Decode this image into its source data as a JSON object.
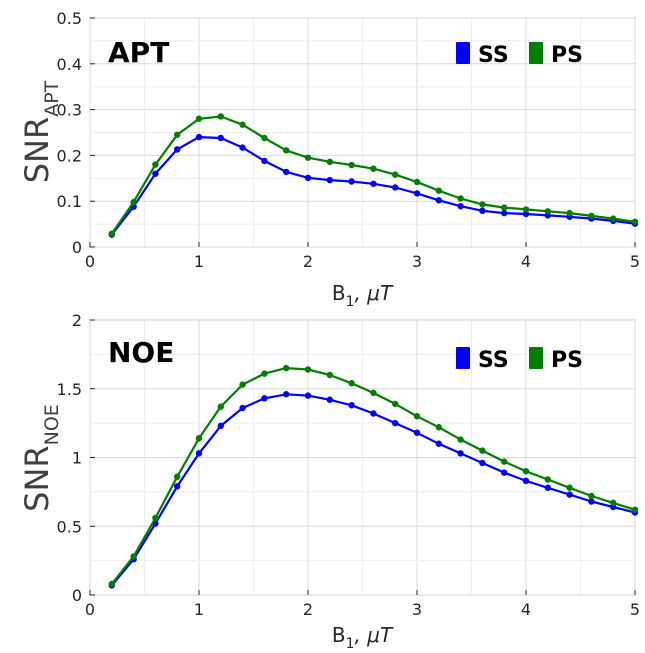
{
  "chart_data": [
    {
      "type": "line",
      "panel_label": "APT",
      "ylabel_main": "SNR",
      "ylabel_sub": "APT",
      "xlabel_main": "B",
      "xlabel_sub": "1",
      "xlabel_tail": ", μT",
      "xlim": [
        0,
        5
      ],
      "ylim": [
        0,
        0.5
      ],
      "xticks": [
        0,
        1,
        2,
        3,
        4,
        5
      ],
      "yticks": [
        0,
        0.1,
        0.2,
        0.3,
        0.4,
        0.5
      ],
      "xtick_labels": [
        "0",
        "1",
        "2",
        "3",
        "4",
        "5"
      ],
      "ytick_labels": [
        "0",
        "0.1",
        "0.2",
        "0.3",
        "0.4",
        "0.5"
      ],
      "grid": true,
      "legend_position": "top-right",
      "x": [
        0.2,
        0.4,
        0.6,
        0.8,
        1.0,
        1.2,
        1.4,
        1.6,
        1.8,
        2.0,
        2.2,
        2.4,
        2.6,
        2.8,
        3.0,
        3.2,
        3.4,
        3.6,
        3.8,
        4.0,
        4.2,
        4.4,
        4.6,
        4.8,
        5.0
      ],
      "series": [
        {
          "name": "SS",
          "color": "#0000ff",
          "values": [
            0.027,
            0.088,
            0.16,
            0.213,
            0.24,
            0.238,
            0.217,
            0.188,
            0.164,
            0.151,
            0.146,
            0.143,
            0.138,
            0.13,
            0.117,
            0.102,
            0.089,
            0.079,
            0.074,
            0.072,
            0.069,
            0.066,
            0.062,
            0.057,
            0.051
          ]
        },
        {
          "name": "PS",
          "color": "#007f00",
          "values": [
            0.029,
            0.098,
            0.18,
            0.245,
            0.28,
            0.285,
            0.267,
            0.238,
            0.211,
            0.195,
            0.186,
            0.179,
            0.171,
            0.158,
            0.142,
            0.123,
            0.106,
            0.093,
            0.086,
            0.082,
            0.078,
            0.074,
            0.068,
            0.062,
            0.055
          ]
        }
      ]
    },
    {
      "type": "line",
      "panel_label": "NOE",
      "ylabel_main": "SNR",
      "ylabel_sub": "NOE",
      "xlabel_main": "B",
      "xlabel_sub": "1",
      "xlabel_tail": ", μT",
      "xlim": [
        0,
        5
      ],
      "ylim": [
        0,
        2
      ],
      "xticks": [
        0,
        1,
        2,
        3,
        4,
        5
      ],
      "yticks": [
        0,
        0.5,
        1,
        1.5,
        2
      ],
      "xtick_labels": [
        "0",
        "1",
        "2",
        "3",
        "4",
        "5"
      ],
      "ytick_labels": [
        "0",
        "0.5",
        "1",
        "1.5",
        "2"
      ],
      "grid": true,
      "legend_position": "top-right",
      "x": [
        0.2,
        0.4,
        0.6,
        0.8,
        1.0,
        1.2,
        1.4,
        1.6,
        1.8,
        2.0,
        2.2,
        2.4,
        2.6,
        2.8,
        3.0,
        3.2,
        3.4,
        3.6,
        3.8,
        4.0,
        4.2,
        4.4,
        4.6,
        4.8,
        5.0
      ],
      "series": [
        {
          "name": "SS",
          "color": "#0000ff",
          "values": [
            0.07,
            0.26,
            0.52,
            0.79,
            1.03,
            1.23,
            1.36,
            1.43,
            1.46,
            1.45,
            1.42,
            1.38,
            1.32,
            1.25,
            1.18,
            1.1,
            1.03,
            0.96,
            0.89,
            0.83,
            0.78,
            0.73,
            0.68,
            0.64,
            0.6
          ]
        },
        {
          "name": "PS",
          "color": "#007f00",
          "values": [
            0.08,
            0.28,
            0.56,
            0.86,
            1.14,
            1.37,
            1.53,
            1.61,
            1.65,
            1.64,
            1.6,
            1.54,
            1.47,
            1.39,
            1.3,
            1.22,
            1.13,
            1.05,
            0.97,
            0.9,
            0.84,
            0.78,
            0.72,
            0.67,
            0.62
          ]
        }
      ]
    }
  ]
}
